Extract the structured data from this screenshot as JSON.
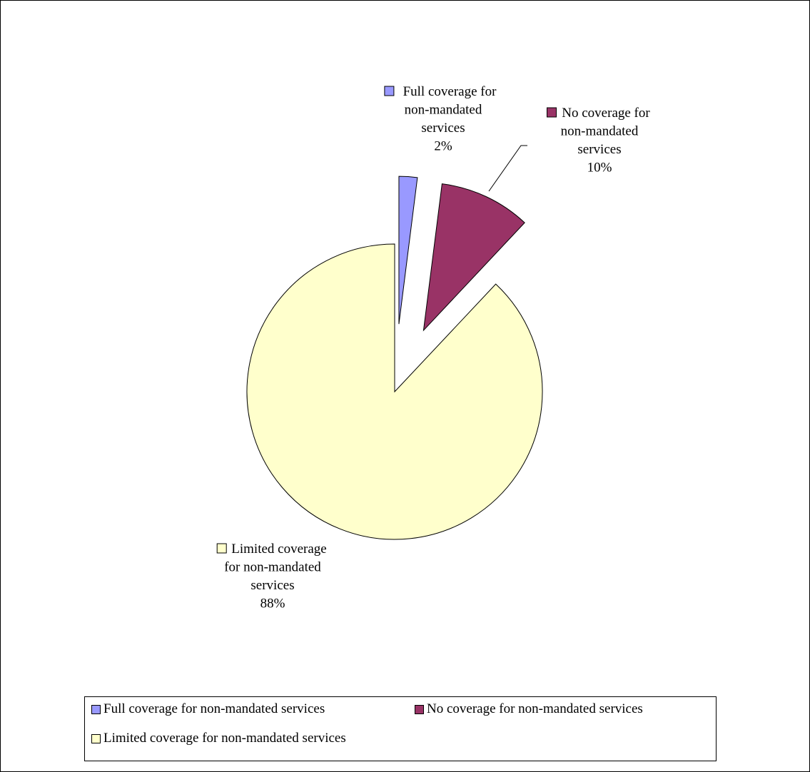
{
  "chart_data": {
    "type": "pie",
    "title": "",
    "slices": [
      {
        "label": "Full coverage for non-mandated services",
        "value": 2,
        "value_label": "2%",
        "color": "#9999ff",
        "exploded": true,
        "label_lines": [
          "Full coverage for",
          "non-mandated",
          "services",
          "2%"
        ]
      },
      {
        "label": "No coverage for non-mandated services",
        "value": 10,
        "value_label": "10%",
        "color": "#993366",
        "exploded": true,
        "label_lines": [
          "No coverage for",
          "non-mandated",
          "services",
          "10%"
        ]
      },
      {
        "label": "Limited coverage for non-mandated services",
        "value": 88,
        "value_label": "88%",
        "color": "#ffffcc",
        "exploded": false,
        "label_lines": [
          "Limited coverage",
          "for non-mandated",
          "services",
          "88%"
        ]
      }
    ],
    "legend": {
      "placement": "bottom",
      "items": [
        {
          "label": "Full coverage for non-mandated services",
          "color": "#9999ff"
        },
        {
          "label": "No coverage for non-mandated services",
          "color": "#993366"
        },
        {
          "label": "Limited coverage for non-mandated services",
          "color": "#ffffcc"
        }
      ]
    }
  }
}
